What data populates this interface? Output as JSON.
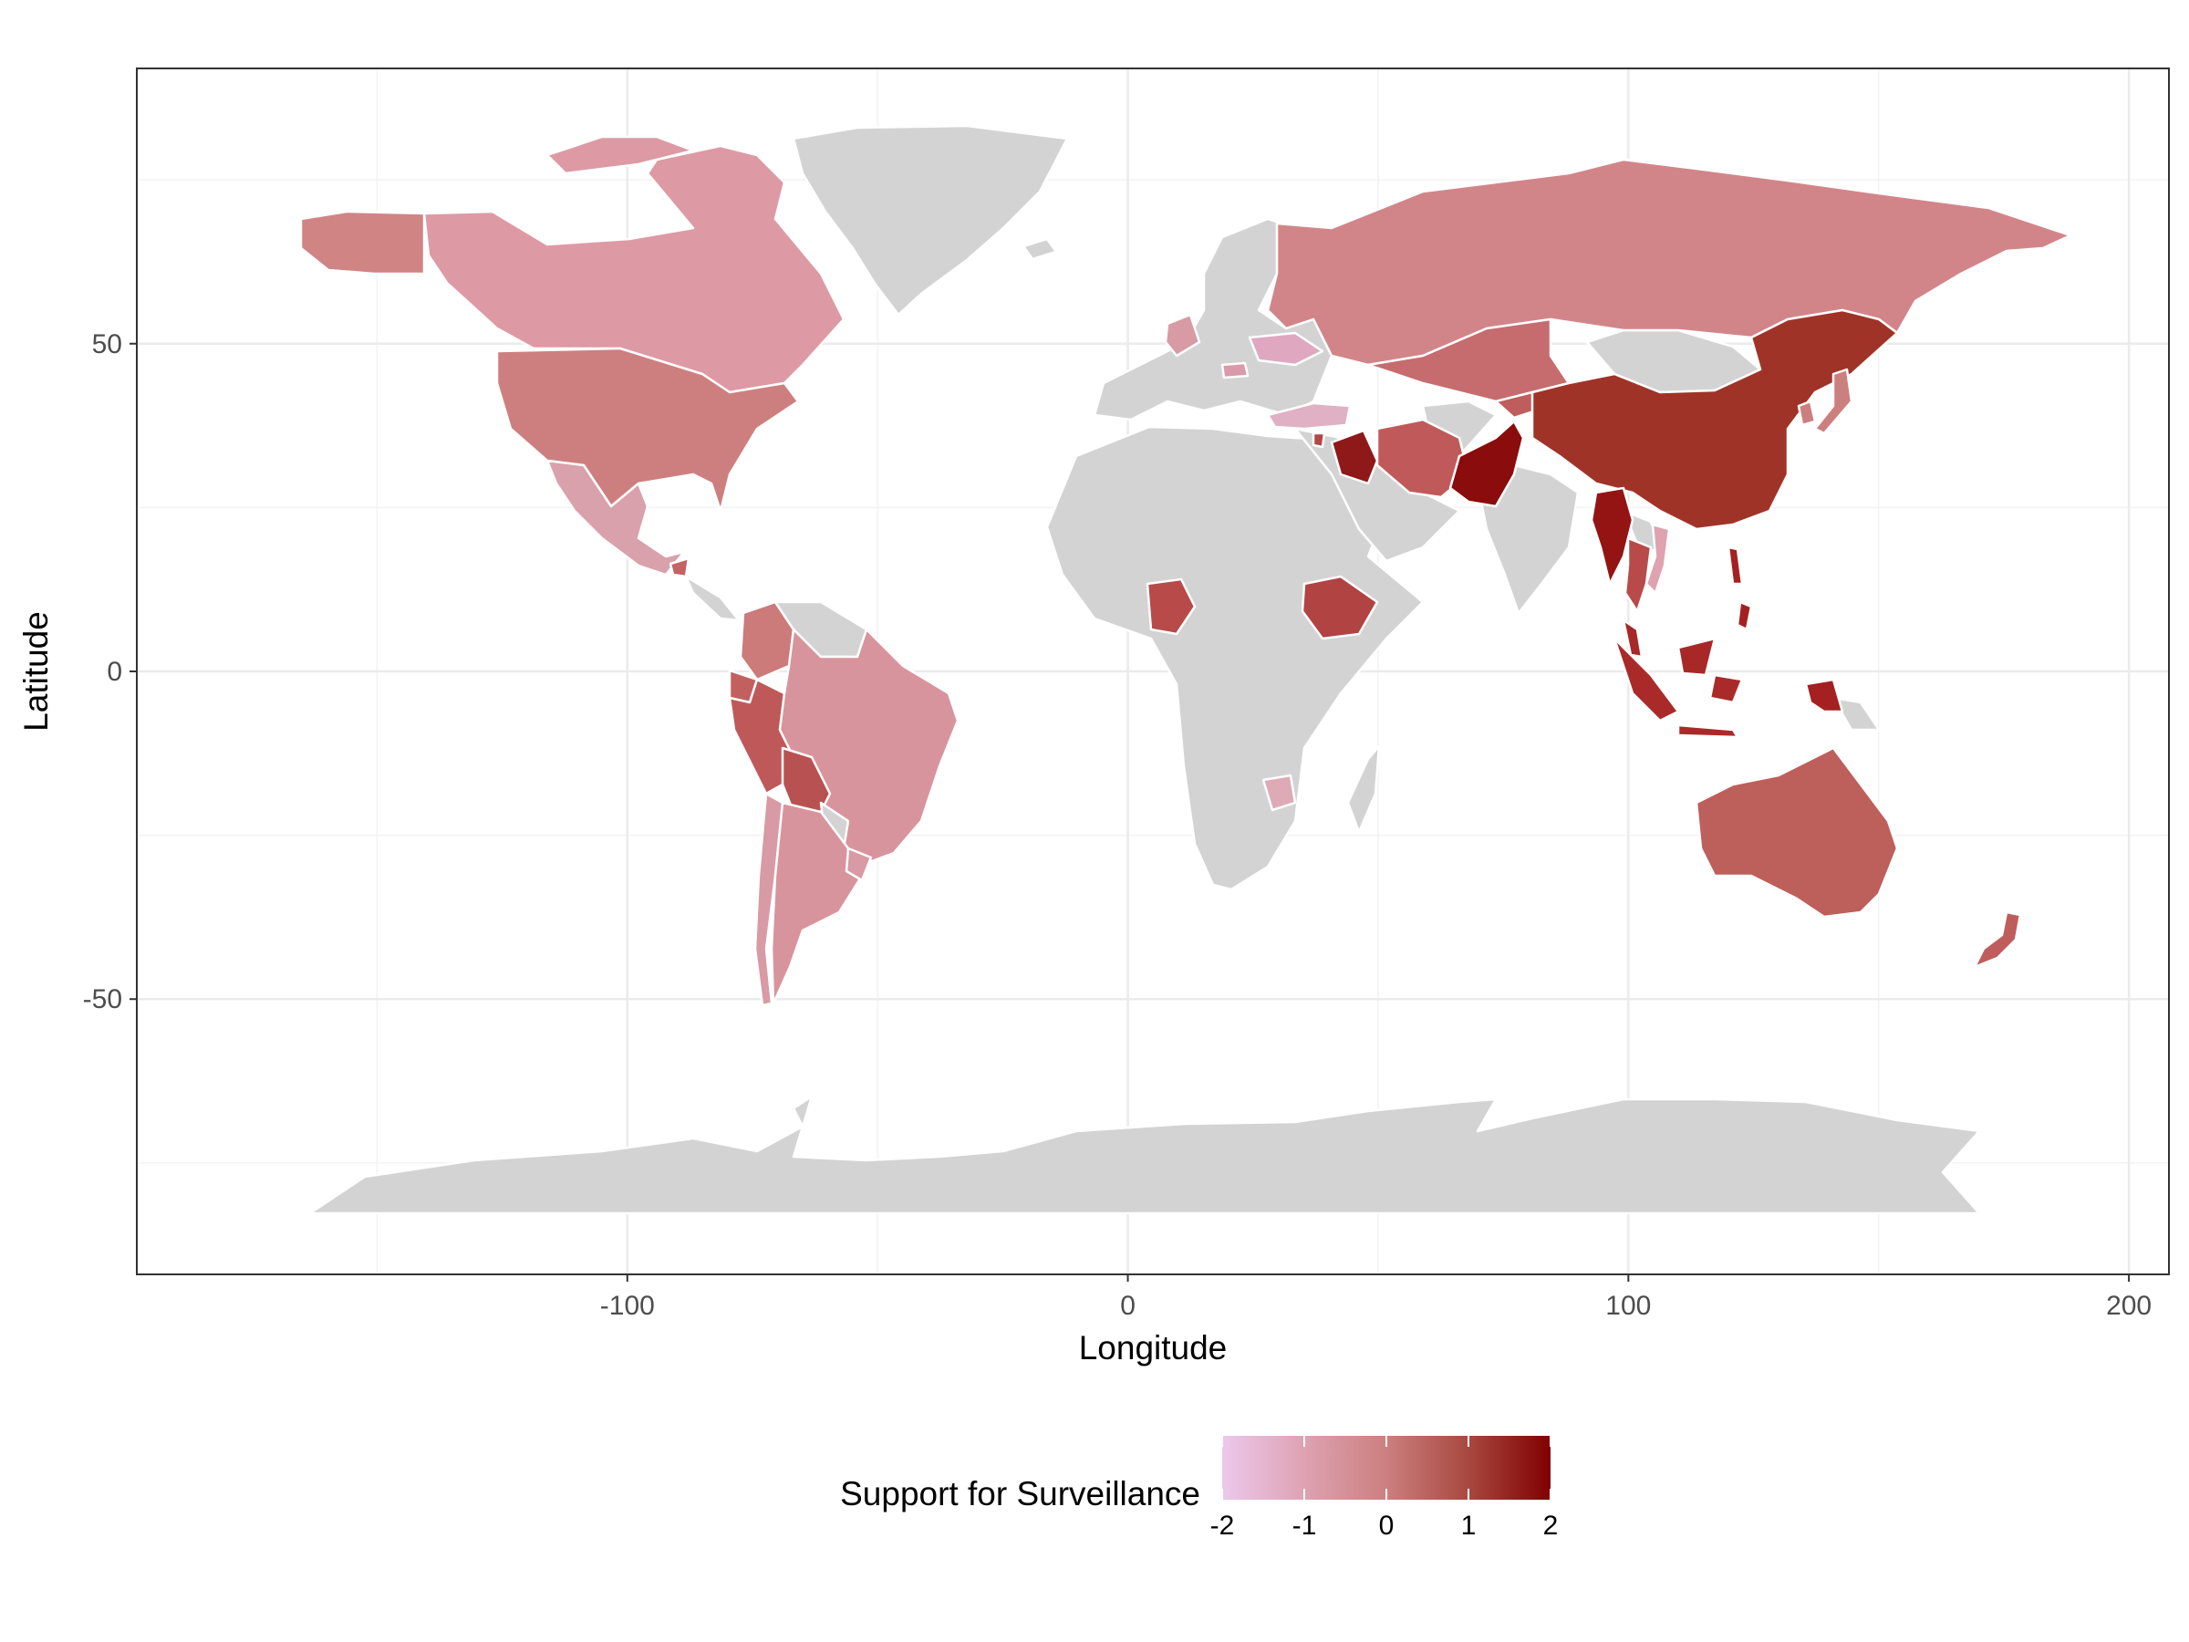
{
  "chart_data": {
    "type": "choropleth",
    "xlabel": "Longitude",
    "ylabel": "Latitude",
    "x_ticks": [
      "-100",
      "0",
      "100",
      "200"
    ],
    "y_ticks": [
      "50",
      "0",
      "-50"
    ],
    "xlim": [
      -198,
      208
    ],
    "ylim": [
      -92,
      92
    ],
    "grid": true,
    "colors": {
      "no_data": "#d3d3d3",
      "panel_border": "#333333",
      "country_border": "#ffffff",
      "scale_low": "#ecc8ec",
      "scale_mid": "#cc7f7f",
      "scale_high": "#800000"
    },
    "legend": {
      "title": "Support for Surveillance",
      "position": "bottom",
      "ticks": [
        "-2",
        "-1",
        "0",
        "1",
        "2"
      ],
      "range": [
        -2,
        2
      ]
    },
    "countries_no_data": [
      "Greenland",
      "Antarctica",
      "Europe",
      "Africa",
      "India",
      "Middle East"
    ],
    "countries": [
      {
        "name": "Canada",
        "value": -0.8
      },
      {
        "name": "United States",
        "value": -0.3
      },
      {
        "name": "Alaska",
        "value": -0.4
      },
      {
        "name": "Mexico",
        "value": -1.1
      },
      {
        "name": "Guatemala",
        "value": 0.1
      },
      {
        "name": "Colombia",
        "value": -0.3
      },
      {
        "name": "Ecuador",
        "value": 0.2
      },
      {
        "name": "Peru",
        "value": 0.4
      },
      {
        "name": "Brazil",
        "value": -0.7
      },
      {
        "name": "Bolivia",
        "value": 0.5
      },
      {
        "name": "Chile",
        "value": -0.6
      },
      {
        "name": "Argentina",
        "value": -0.7
      },
      {
        "name": "Uruguay",
        "value": -0.6
      },
      {
        "name": "United Kingdom",
        "value": -0.6
      },
      {
        "name": "Ukraine",
        "value": -1.1
      },
      {
        "name": "Hungary",
        "value": -0.9
      },
      {
        "name": "Turkey",
        "value": -1.3
      },
      {
        "name": "Russia",
        "value": -0.4
      },
      {
        "name": "Kazakhstan",
        "value": -0.1
      },
      {
        "name": "Iran",
        "value": 0.4
      },
      {
        "name": "Iraq",
        "value": 1.6
      },
      {
        "name": "Lebanon",
        "value": 0.6
      },
      {
        "name": "Pakistan",
        "value": 1.9
      },
      {
        "name": "Kyrgyzstan",
        "value": 0.3
      },
      {
        "name": "China",
        "value": 1.2
      },
      {
        "name": "South Korea",
        "value": -0.2
      },
      {
        "name": "Japan",
        "value": -0.2
      },
      {
        "name": "Myanmar",
        "value": 1.6
      },
      {
        "name": "Thailand",
        "value": 0.3
      },
      {
        "name": "Vietnam",
        "value": -0.8
      },
      {
        "name": "Philippines",
        "value": 1.0
      },
      {
        "name": "Malaysia",
        "value": 1.0
      },
      {
        "name": "Indonesia",
        "value": 0.9
      },
      {
        "name": "Papua New Guinea",
        "value": 1.1
      },
      {
        "name": "Nigeria",
        "value": 0.5
      },
      {
        "name": "Ethiopia",
        "value": 0.6
      },
      {
        "name": "Zimbabwe",
        "value": -1.0
      },
      {
        "name": "Australia",
        "value": 0.2
      },
      {
        "name": "New Zealand",
        "value": 0.3
      }
    ]
  }
}
